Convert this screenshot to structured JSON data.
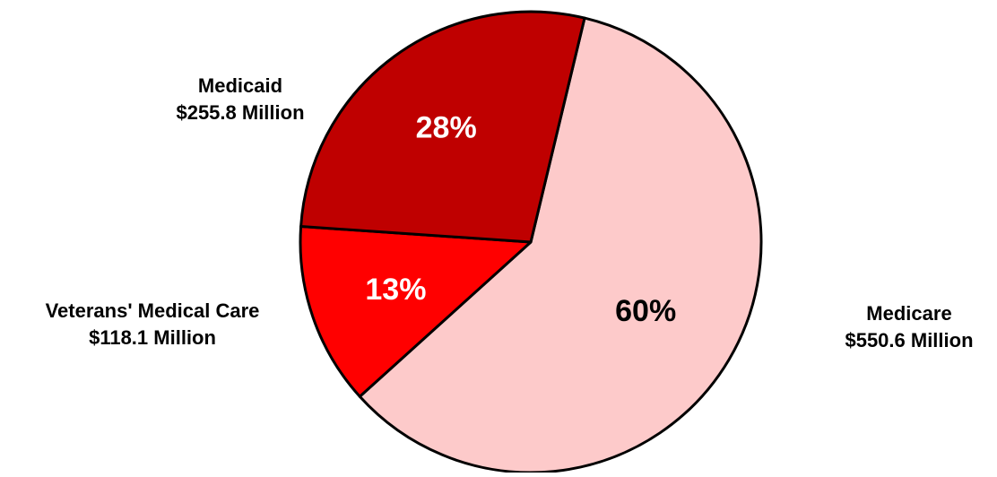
{
  "chart_data": {
    "type": "pie",
    "title": "",
    "slices": [
      {
        "name": "Medicare",
        "amount": "$550.6 Million",
        "value": 550.6,
        "percent_label": "60%",
        "color": "#fdcaca"
      },
      {
        "name": "Veterans' Medical Care",
        "amount": "$118.1 Million",
        "value": 118.1,
        "percent_label": "13%",
        "color": "#ff0000"
      },
      {
        "name": "Medicaid",
        "amount": "$255.8 Million",
        "value": 255.8,
        "percent_label": "28%",
        "color": "#bf0000"
      }
    ]
  }
}
